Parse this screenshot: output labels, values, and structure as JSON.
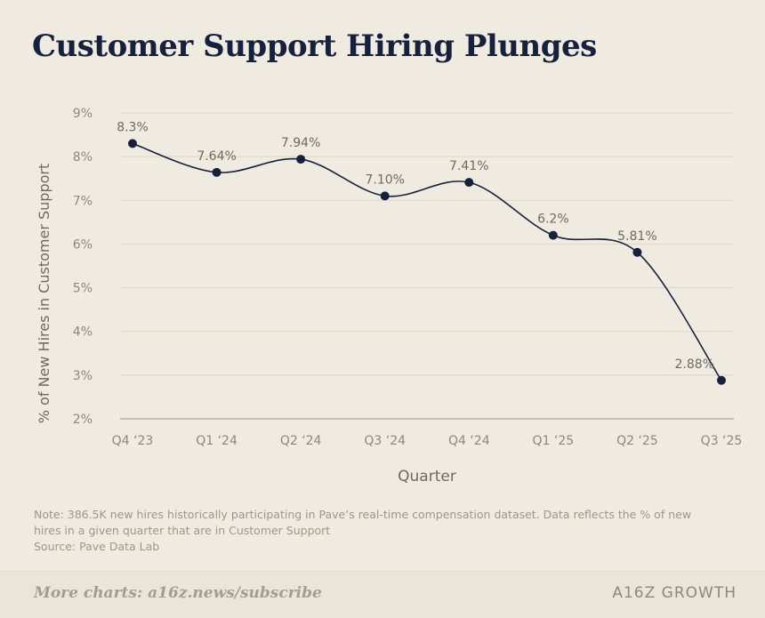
{
  "title": "Customer Support Hiring Plunges",
  "note_line1": "Note: 386.5K new hires historically participating in Pave’s real-time compensation dataset. Data reflects the % of new",
  "note_line2": "hires in a given quarter that are in Customer Support",
  "source": "Source: Pave Data Lab",
  "footer": {
    "link_label": "More charts: a16z.news/subscribe",
    "brand": "A16Z GROWTH"
  },
  "colors": {
    "background": "#f0ebe1",
    "line": "#16213e",
    "grid": "#ddd5c4",
    "axis_text": "#8d887b",
    "label_text": "#6f6a5f"
  },
  "chart_data": {
    "type": "line",
    "title": "Customer Support Hiring Plunges",
    "xlabel": "Quarter",
    "ylabel": "% of New Hires in Customer Support",
    "categories": [
      "Q4 ‘23",
      "Q1 ‘24",
      "Q2 ‘24",
      "Q3 ‘24",
      "Q4 ‘24",
      "Q1 ‘25",
      "Q2 ‘25",
      "Q3 ‘25"
    ],
    "values": [
      8.3,
      7.64,
      7.94,
      7.1,
      7.41,
      6.2,
      5.81,
      2.88
    ],
    "data_labels": [
      "8.3%",
      "7.64%",
      "7.94%",
      "7.10%",
      "7.41%",
      "6.2%",
      "5.81%",
      "2.88%"
    ],
    "yticks": [
      "2%",
      "3%",
      "4%",
      "5%",
      "6%",
      "7%",
      "8%",
      "9%"
    ],
    "ylim": [
      2,
      9
    ],
    "grid": true,
    "legend": "none"
  }
}
